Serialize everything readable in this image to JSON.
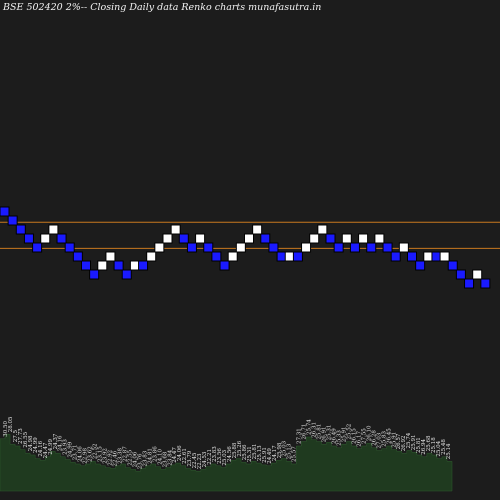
{
  "title": "BSE 502420  2%-- Closing Daily data  Renko  charts munafasutra.in",
  "colors": {
    "background": "#1c1c1c",
    "up_brick": "#ffffff",
    "down_brick": "#1a1aff",
    "brick_outline": "#000000",
    "reference_line": "#c8781e",
    "volume_fill": "#1f3a1f",
    "label_text": "#e6e6e6"
  },
  "chart_data": {
    "type": "renko",
    "title": "BSE 502420  2%-- Closing Daily data  Renko  charts munafasutra.in",
    "brick_size_text": "2%",
    "bricks": [
      {
        "dir": "down",
        "level": 0
      },
      {
        "dir": "down",
        "level": -1
      },
      {
        "dir": "down",
        "level": -2
      },
      {
        "dir": "down",
        "level": -3
      },
      {
        "dir": "down",
        "level": -4
      },
      {
        "dir": "up",
        "level": -3
      },
      {
        "dir": "up",
        "level": -2
      },
      {
        "dir": "down",
        "level": -3
      },
      {
        "dir": "down",
        "level": -4
      },
      {
        "dir": "down",
        "level": -5
      },
      {
        "dir": "down",
        "level": -6
      },
      {
        "dir": "down",
        "level": -7
      },
      {
        "dir": "up",
        "level": -6
      },
      {
        "dir": "up",
        "level": -5
      },
      {
        "dir": "down",
        "level": -6
      },
      {
        "dir": "down",
        "level": -7
      },
      {
        "dir": "up",
        "level": -6
      },
      {
        "dir": "down",
        "level": -6
      },
      {
        "dir": "up",
        "level": -5
      },
      {
        "dir": "up",
        "level": -4
      },
      {
        "dir": "up",
        "level": -3
      },
      {
        "dir": "up",
        "level": -2
      },
      {
        "dir": "down",
        "level": -3
      },
      {
        "dir": "down",
        "level": -4
      },
      {
        "dir": "up",
        "level": -3
      },
      {
        "dir": "down",
        "level": -4
      },
      {
        "dir": "down",
        "level": -5
      },
      {
        "dir": "down",
        "level": -6
      },
      {
        "dir": "up",
        "level": -5
      },
      {
        "dir": "up",
        "level": -4
      },
      {
        "dir": "up",
        "level": -3
      },
      {
        "dir": "up",
        "level": -2
      },
      {
        "dir": "down",
        "level": -3
      },
      {
        "dir": "down",
        "level": -4
      },
      {
        "dir": "down",
        "level": -5
      },
      {
        "dir": "up",
        "level": -5
      },
      {
        "dir": "down",
        "level": -5
      },
      {
        "dir": "up",
        "level": -4
      },
      {
        "dir": "up",
        "level": -3
      },
      {
        "dir": "up",
        "level": -2
      },
      {
        "dir": "down",
        "level": -3
      },
      {
        "dir": "down",
        "level": -4
      },
      {
        "dir": "up",
        "level": -3
      },
      {
        "dir": "down",
        "level": -4
      },
      {
        "dir": "up",
        "level": -3
      },
      {
        "dir": "down",
        "level": -4
      },
      {
        "dir": "up",
        "level": -3
      },
      {
        "dir": "down",
        "level": -4
      },
      {
        "dir": "down",
        "level": -5
      },
      {
        "dir": "up",
        "level": -4
      },
      {
        "dir": "down",
        "level": -5
      },
      {
        "dir": "down",
        "level": -6
      },
      {
        "dir": "up",
        "level": -5
      },
      {
        "dir": "down",
        "level": -5
      },
      {
        "dir": "up",
        "level": -5
      },
      {
        "dir": "down",
        "level": -6
      },
      {
        "dir": "down",
        "level": -7
      },
      {
        "dir": "down",
        "level": -8
      },
      {
        "dir": "up",
        "level": -7
      },
      {
        "dir": "down",
        "level": -8
      }
    ],
    "reference_lines": [
      {
        "level": -1.2
      },
      {
        "level": -4.1
      }
    ],
    "volume_labels": [
      "30.50",
      "28.05",
      "27.5",
      "27.73",
      "26.55",
      "24.98",
      "24.99",
      "24.16",
      "24.47",
      "24.99",
      "24.37",
      "24.16",
      "23.93",
      "24.99",
      "23.71",
      "24.06",
      "22.98",
      "23.62",
      "22.52",
      "23.15",
      "23.92",
      "22.92",
      "22.46",
      "23.38",
      "22.87",
      "22.55",
      "24.06",
      "23.76",
      "23.83",
      "24.81",
      "23.86",
      "24.10",
      "23.68",
      "23.84",
      "24.47",
      "24.06",
      "22.61",
      "23.79",
      "22.45",
      "22.23",
      "24.53",
      "22.21",
      "23.83",
      "23.56",
      "25.03",
      "24.56",
      "25.88",
      "25.26",
      "25.86",
      "25.31",
      "25.81",
      "25.13",
      "25.91",
      "24.49",
      "24.17",
      "25.98",
      "25.03",
      "25.13",
      "25.57",
      "27.31",
      "26.71",
      "25.74",
      "26.31",
      "25.81",
      "26.91",
      "25.31",
      "26.49",
      "25.33",
      "25.91",
      "25.52",
      "26.15",
      "26.17",
      "27.55",
      "26.10",
      "26.28",
      "27.03",
      "25.83",
      "26.45",
      "25.91",
      "26.57",
      "26.92",
      "25.74",
      "25.91",
      "25.81",
      "26.94",
      "25.68",
      "25.18",
      "25.04",
      "25.48",
      "25.14"
    ],
    "volume_relative": [
      0.58,
      0.63,
      0.52,
      0.5,
      0.46,
      0.42,
      0.4,
      0.36,
      0.34,
      0.38,
      0.44,
      0.42,
      0.38,
      0.35,
      0.32,
      0.3,
      0.28,
      0.3,
      0.33,
      0.3,
      0.28,
      0.26,
      0.25,
      0.28,
      0.3,
      0.26,
      0.24,
      0.22,
      0.25,
      0.28,
      0.3,
      0.27,
      0.24,
      0.26,
      0.29,
      0.31,
      0.28,
      0.25,
      0.23,
      0.22,
      0.24,
      0.27,
      0.3,
      0.28,
      0.26,
      0.3,
      0.34,
      0.36,
      0.32,
      0.3,
      0.33,
      0.31,
      0.29,
      0.28,
      0.31,
      0.34,
      0.36,
      0.33,
      0.3,
      0.5,
      0.55,
      0.6,
      0.57,
      0.55,
      0.52,
      0.54,
      0.5,
      0.48,
      0.52,
      0.55,
      0.5,
      0.47,
      0.5,
      0.53,
      0.48,
      0.45,
      0.47,
      0.5,
      0.46,
      0.44,
      0.42,
      0.45,
      0.43,
      0.4,
      0.38,
      0.42,
      0.4,
      0.36,
      0.38,
      0.33
    ]
  }
}
